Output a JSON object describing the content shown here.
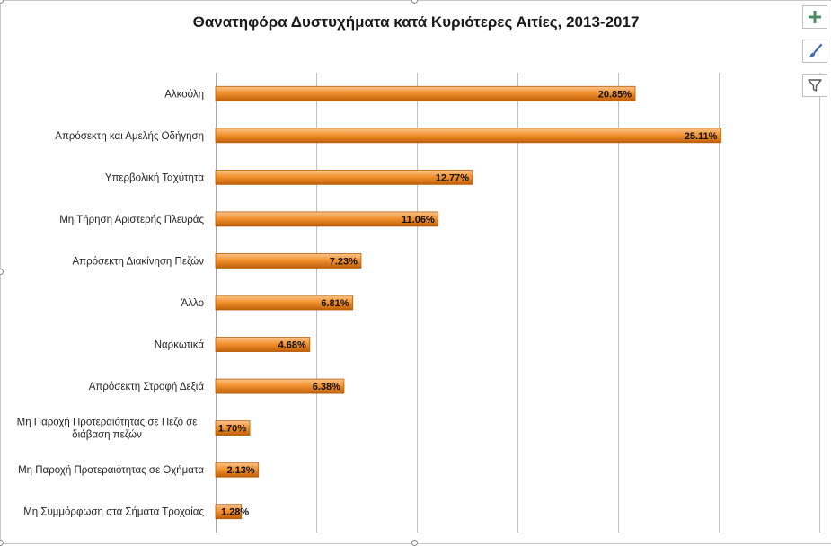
{
  "chart_data": {
    "type": "bar",
    "orientation": "horizontal",
    "title": "Θανατηφόρα Δυστυχήματα κατά Κυριότερες Αιτίες, 2013-2017",
    "xlabel": "",
    "ylabel": "",
    "categories": [
      "Αλκοόλη",
      "Απρόσεκτη και Αμελής Οδήγηση",
      "Υπερβολική Ταχύτητα",
      "Μη Τήρηση Αριστερής Πλευράς",
      "Απρόσεκτη Διακίνηση Πεζών",
      "Άλλο",
      "Ναρκωτικά",
      "Απρόσεκτη Στροφή Δεξιά",
      "Μη Παροχή Προτεραιότητας σε Πεζό σε διάβαση πεζών",
      "Μη Παροχή Προτεραιότητας σε Οχήματα",
      "Μη Συμμόρφωση στα Σήματα Τροχαίας"
    ],
    "values": [
      20.85,
      25.11,
      12.77,
      11.06,
      7.23,
      6.81,
      4.68,
      6.38,
      1.7,
      2.13,
      1.28
    ],
    "data_labels": [
      "20.85%",
      "25.11%",
      "12.77%",
      "11.06%",
      "7.23%",
      "6.81%",
      "4.68%",
      "6.38%",
      "1.70%",
      "2.13%",
      "1.28%"
    ],
    "xlim": [
      0,
      30
    ],
    "x_gridline_step": 5,
    "x_tick_labels_visible": false,
    "grid": true,
    "legend": "none",
    "colors": {
      "bar_fill_top": "#fbc48e",
      "bar_fill_mid": "#f39331",
      "bar_fill_bottom": "#c15f07",
      "bar_edge": "#b35f0c",
      "gridline": "#c0c0c0",
      "axis": "#a6a6a6",
      "text": "#262626"
    }
  },
  "toolbar": {
    "icons": [
      "plus-icon",
      "brush-icon",
      "filter-icon"
    ],
    "color": "#4e8a63"
  }
}
